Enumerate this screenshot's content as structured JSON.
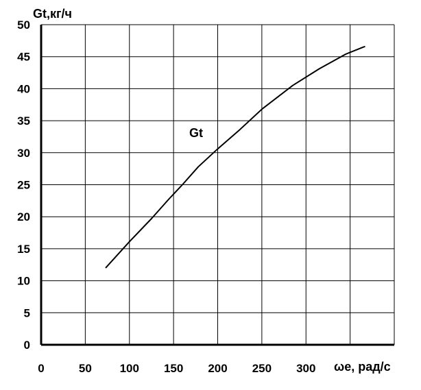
{
  "chart_data": {
    "type": "line",
    "ylabel": "Gt,кг/ч",
    "xlabel": "ωe, рад/с",
    "xlim": [
      0,
      400
    ],
    "ylim": [
      0,
      50
    ],
    "x_ticks": [
      "0",
      "50",
      "100",
      "150",
      "200",
      "250",
      "300"
    ],
    "y_ticks": [
      "0",
      "5",
      "10",
      "15",
      "20",
      "25",
      "30",
      "35",
      "40",
      "45",
      "50"
    ],
    "grid": true,
    "series": [
      {
        "name": "Gt",
        "color": "#000000",
        "x": [
          73,
          100,
          125,
          145,
          160,
          178,
          200,
          225,
          250,
          285,
          315,
          345,
          365,
          367
        ],
        "y": [
          12.0,
          16.1,
          19.7,
          22.8,
          25.0,
          27.8,
          30.6,
          33.6,
          36.8,
          40.5,
          43.1,
          45.4,
          46.5,
          46.6
        ]
      }
    ]
  }
}
